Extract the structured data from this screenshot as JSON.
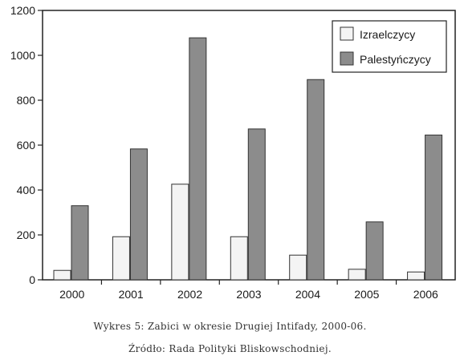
{
  "chart_data": {
    "type": "bar",
    "categories": [
      "2000",
      "2001",
      "2002",
      "2003",
      "2004",
      "2005",
      "2006"
    ],
    "series": [
      {
        "name": "Izraelczycy",
        "color": "#f4f4f4",
        "values": [
          42,
          192,
          426,
          192,
          110,
          47,
          35
        ]
      },
      {
        "name": "Palestyńczycy",
        "color": "#8c8c8c",
        "values": [
          330,
          583,
          1078,
          672,
          892,
          258,
          645
        ]
      }
    ],
    "yticks": [
      "0",
      "200",
      "400",
      "600",
      "800",
      "1000",
      "1200"
    ],
    "ylim": [
      0,
      1200
    ],
    "grid": false,
    "legend_position": "top-right"
  },
  "caption": {
    "line1": "Wykres 5: Zabici w okresie Drugiej Intifady, 2000-06.",
    "line2": "Źródło: Rada Polityki Bliskowschodniej."
  }
}
